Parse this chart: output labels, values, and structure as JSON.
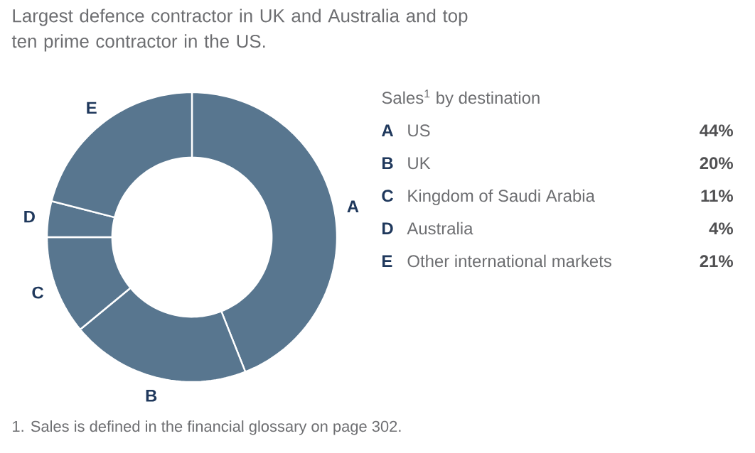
{
  "chart_data": {
    "type": "donut",
    "title": "Largest defence contractor in UK and Australia and top ten prime contractor in the US.",
    "categories": [
      "A",
      "B",
      "C",
      "D",
      "E"
    ],
    "values": [
      44,
      20,
      11,
      4,
      21
    ],
    "colors": [
      "#58768f",
      "#58768f",
      "#58768f",
      "#58768f",
      "#58768f"
    ],
    "annotations": [
      "Sales$^{1}$ by destination",
      {
        "text": "US",
        "x": "A"
      },
      {
        "text": "44%",
        "x": "A"
      },
      {
        "text": "UK",
        "x": "B"
      },
      {
        "text": "20%",
        "x": "B"
      },
      {
        "text": "Kingdom of Saudi Arabia",
        "x": "C"
      },
      {
        "text": "11%",
        "x": "C"
      },
      {
        "text": "Australia",
        "x": "D"
      },
      {
        "text": "4%",
        "x": "D"
      },
      {
        "text": "Other international markets",
        "x": "E"
      },
      {
        "text": "21%",
        "x": "E"
      },
      "1. Sales is defined in the financial glossary on page 302."
    ]
  }
}
